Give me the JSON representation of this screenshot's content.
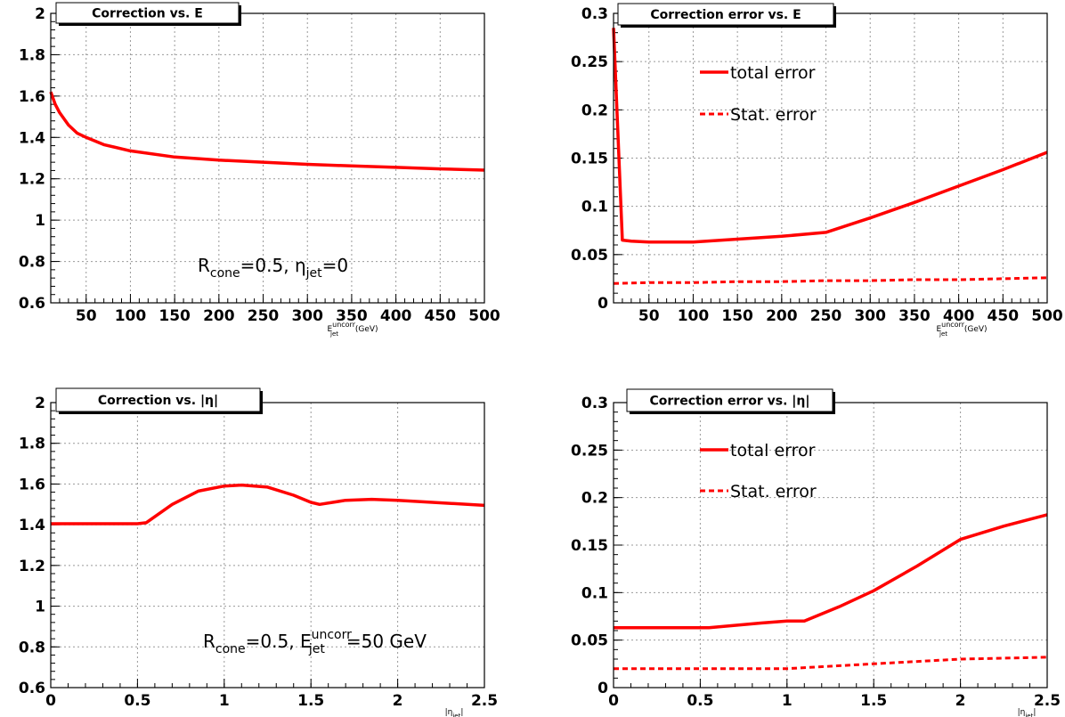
{
  "chart_data": [
    {
      "type": "line",
      "title": "Correction vs. E",
      "xlabel_main": "E",
      "xlabel_sup": "uncorr",
      "xlabel_sub": "jet",
      "xlabel_unit": "(GeV)",
      "xlim": [
        10,
        500
      ],
      "ylim": [
        0.6,
        2.0
      ],
      "xticks": [
        50,
        100,
        150,
        200,
        250,
        300,
        350,
        400,
        450,
        500
      ],
      "xtick_labels": [
        "50",
        "100",
        "150",
        "200",
        "250",
        "300",
        "350",
        "400",
        "450",
        "500"
      ],
      "yticks": [
        0.6,
        0.8,
        1.0,
        1.2,
        1.4,
        1.6,
        1.8,
        2.0
      ],
      "ytick_labels": [
        "0.6",
        "0.8",
        "1",
        "1.2",
        "1.4",
        "1.6",
        "1.8",
        "2"
      ],
      "grid": true,
      "annotation": {
        "p1": "R",
        "s1": "cone",
        "p2": "=0.5,  ",
        "p3": "η",
        "s2": "jet",
        "p4": "=0"
      },
      "series": [
        {
          "style": "solid",
          "color": "#ff0000",
          "x": [
            10,
            15,
            20,
            30,
            40,
            50,
            70,
            100,
            150,
            200,
            250,
            300,
            350,
            400,
            450,
            500
          ],
          "y": [
            1.62,
            1.56,
            1.52,
            1.46,
            1.42,
            1.4,
            1.365,
            1.335,
            1.305,
            1.29,
            1.28,
            1.27,
            1.262,
            1.255,
            1.248,
            1.242
          ]
        }
      ]
    },
    {
      "type": "line",
      "title": "Correction error vs. E",
      "xlabel_main": "E",
      "xlabel_sup": "uncorr",
      "xlabel_sub": "jet",
      "xlabel_unit": "(GeV)",
      "xlim": [
        10,
        500
      ],
      "ylim": [
        0,
        0.3
      ],
      "xticks": [
        50,
        100,
        150,
        200,
        250,
        300,
        350,
        400,
        450,
        500
      ],
      "xtick_labels": [
        "50",
        "100",
        "150",
        "200",
        "250",
        "300",
        "350",
        "400",
        "450",
        "500"
      ],
      "yticks": [
        0,
        0.05,
        0.1,
        0.15,
        0.2,
        0.25,
        0.3
      ],
      "ytick_labels": [
        "0",
        "0.05",
        "0.1",
        "0.15",
        "0.2",
        "0.25",
        "0.3"
      ],
      "grid": true,
      "legend": {
        "placement": "top-center"
      },
      "series": [
        {
          "name": "total error",
          "style": "solid",
          "color": "#ff0000",
          "x": [
            10,
            20,
            30,
            50,
            100,
            150,
            200,
            250,
            300,
            350,
            400,
            450,
            500
          ],
          "y": [
            0.285,
            0.065,
            0.064,
            0.063,
            0.063,
            0.066,
            0.069,
            0.073,
            0.088,
            0.104,
            0.121,
            0.138,
            0.156
          ]
        },
        {
          "name": "Stat. error",
          "style": "dashed",
          "color": "#ff0000",
          "x": [
            10,
            50,
            100,
            150,
            200,
            250,
            300,
            350,
            400,
            450,
            500
          ],
          "y": [
            0.02,
            0.021,
            0.021,
            0.022,
            0.022,
            0.023,
            0.023,
            0.024,
            0.024,
            0.025,
            0.026
          ]
        }
      ]
    },
    {
      "type": "line",
      "title": "Correction vs. |η|",
      "xlabel_main": "|η",
      "xlabel_sub": "jet",
      "xlabel_tail": "|",
      "xlim": [
        0,
        2.5
      ],
      "ylim": [
        0.6,
        2.0
      ],
      "xticks": [
        0,
        0.5,
        1,
        1.5,
        2,
        2.5
      ],
      "xtick_labels": [
        "0",
        "0.5",
        "1",
        "1.5",
        "2",
        "2.5"
      ],
      "yticks": [
        0.6,
        0.8,
        1.0,
        1.2,
        1.4,
        1.6,
        1.8,
        2.0
      ],
      "ytick_labels": [
        "0.6",
        "0.8",
        "1",
        "1.2",
        "1.4",
        "1.6",
        "1.8",
        "2"
      ],
      "grid": true,
      "annotation": {
        "p1": "R",
        "s1": "cone",
        "p2": "=0.5, ",
        "p3": "E",
        "s2": "jet",
        "sup": "uncorr",
        "p4": "=50 GeV"
      },
      "series": [
        {
          "style": "solid",
          "color": "#ff0000",
          "x": [
            0,
            0.25,
            0.5,
            0.55,
            0.7,
            0.85,
            1.0,
            1.1,
            1.25,
            1.4,
            1.5,
            1.55,
            1.7,
            1.85,
            2.0,
            2.2,
            2.5
          ],
          "y": [
            1.405,
            1.405,
            1.405,
            1.41,
            1.5,
            1.565,
            1.59,
            1.595,
            1.585,
            1.545,
            1.51,
            1.5,
            1.52,
            1.525,
            1.52,
            1.51,
            1.495
          ]
        }
      ]
    },
    {
      "type": "line",
      "title": "Correction error vs. |η|",
      "xlabel_main": "|η",
      "xlabel_sub": "jet",
      "xlabel_tail": "|",
      "xlim": [
        0,
        2.5
      ],
      "ylim": [
        0,
        0.3
      ],
      "xticks": [
        0,
        0.5,
        1,
        1.5,
        2,
        2.5
      ],
      "xtick_labels": [
        "0",
        "0.5",
        "1",
        "1.5",
        "2",
        "2.5"
      ],
      "yticks": [
        0,
        0.05,
        0.1,
        0.15,
        0.2,
        0.25,
        0.3
      ],
      "ytick_labels": [
        "0",
        "0.05",
        "0.1",
        "0.15",
        "0.2",
        "0.25",
        "0.3"
      ],
      "grid": true,
      "legend": {
        "placement": "top-center"
      },
      "series": [
        {
          "name": "total error",
          "style": "solid",
          "color": "#ff0000",
          "x": [
            0,
            0.3,
            0.55,
            0.85,
            1.0,
            1.1,
            1.3,
            1.5,
            1.75,
            2.0,
            2.25,
            2.5
          ],
          "y": [
            0.063,
            0.063,
            0.063,
            0.068,
            0.07,
            0.07,
            0.085,
            0.102,
            0.128,
            0.156,
            0.17,
            0.182
          ]
        },
        {
          "name": "Stat. error",
          "style": "dashed",
          "color": "#ff0000",
          "x": [
            0,
            0.5,
            1.0,
            1.1,
            1.5,
            2.0,
            2.5
          ],
          "y": [
            0.02,
            0.02,
            0.02,
            0.021,
            0.025,
            0.03,
            0.032
          ]
        }
      ]
    }
  ]
}
